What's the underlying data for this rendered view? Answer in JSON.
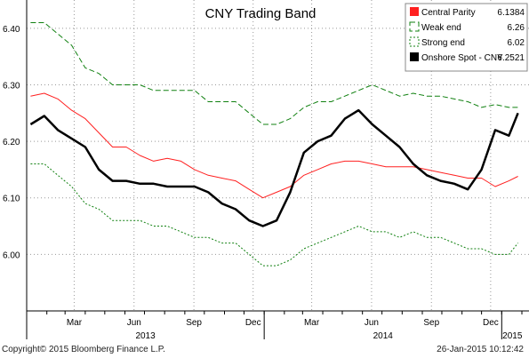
{
  "chart_data": {
    "type": "line",
    "title": "CNY Trading Band",
    "xlabel": "",
    "ylabel": "",
    "ylim": [
      5.9,
      6.45
    ],
    "yticks": [
      "6.40",
      "6.30",
      "6.20",
      "6.10",
      "6.00"
    ],
    "x_tick_labels": [
      "Mar",
      "Jun",
      "Sep",
      "Dec",
      "Mar",
      "Jun",
      "Sep",
      "Dec"
    ],
    "year_labels": [
      "2013",
      "2014",
      "2015"
    ],
    "grid": true,
    "legend_position": "top-right",
    "x": [
      "2013-01-07",
      "2013-01-28",
      "2013-02-18",
      "2013-03-11",
      "2013-04-01",
      "2013-04-22",
      "2013-05-13",
      "2013-06-03",
      "2013-06-24",
      "2013-07-15",
      "2013-08-05",
      "2013-08-26",
      "2013-09-16",
      "2013-10-07",
      "2013-10-28",
      "2013-11-18",
      "2013-12-09",
      "2013-12-30",
      "2014-01-20",
      "2014-02-10",
      "2014-03-03",
      "2014-03-24",
      "2014-04-14",
      "2014-05-05",
      "2014-05-26",
      "2014-06-16",
      "2014-07-07",
      "2014-07-28",
      "2014-08-18",
      "2014-09-08",
      "2014-09-29",
      "2014-10-20",
      "2014-11-10",
      "2014-12-01",
      "2014-12-22",
      "2015-01-12",
      "2015-01-26"
    ],
    "series": [
      {
        "name": "Central Parity",
        "last_value": "6.1384",
        "color": "#ff2020",
        "dash": "solid",
        "values": [
          6.28,
          6.285,
          6.275,
          6.255,
          6.24,
          6.215,
          6.19,
          6.19,
          6.175,
          6.165,
          6.17,
          6.165,
          6.15,
          6.14,
          6.135,
          6.13,
          6.115,
          6.1,
          6.11,
          6.12,
          6.14,
          6.15,
          6.16,
          6.165,
          6.165,
          6.16,
          6.155,
          6.155,
          6.155,
          6.15,
          6.145,
          6.14,
          6.135,
          6.135,
          6.12,
          6.13,
          6.138
        ]
      },
      {
        "name": "Weak end",
        "last_value": "6.26",
        "color": "#108010",
        "dash": "6,3",
        "values": [
          6.41,
          6.41,
          6.39,
          6.37,
          6.33,
          6.32,
          6.3,
          6.3,
          6.3,
          6.29,
          6.29,
          6.29,
          6.29,
          6.27,
          6.27,
          6.27,
          6.25,
          6.23,
          6.23,
          6.24,
          6.26,
          6.27,
          6.27,
          6.28,
          6.29,
          6.3,
          6.29,
          6.28,
          6.285,
          6.28,
          6.28,
          6.275,
          6.27,
          6.26,
          6.265,
          6.26,
          6.26
        ]
      },
      {
        "name": "Strong end",
        "last_value": "6.02",
        "color": "#108010",
        "dash": "2,2",
        "values": [
          6.16,
          6.16,
          6.14,
          6.12,
          6.09,
          6.08,
          6.06,
          6.06,
          6.06,
          6.05,
          6.05,
          6.04,
          6.03,
          6.03,
          6.02,
          6.02,
          6.0,
          5.98,
          5.98,
          5.99,
          6.01,
          6.02,
          6.03,
          6.04,
          6.05,
          6.04,
          6.04,
          6.03,
          6.04,
          6.03,
          6.03,
          6.02,
          6.01,
          6.01,
          6.0,
          6.0,
          6.02
        ]
      },
      {
        "name": "Onshore Spot - CNY",
        "last_value": "6.2521",
        "color": "#000000",
        "dash": "solid",
        "values": [
          6.23,
          6.245,
          6.22,
          6.205,
          6.19,
          6.15,
          6.13,
          6.13,
          6.125,
          6.125,
          6.12,
          6.12,
          6.12,
          6.11,
          6.09,
          6.08,
          6.06,
          6.05,
          6.06,
          6.11,
          6.18,
          6.2,
          6.21,
          6.24,
          6.255,
          6.23,
          6.21,
          6.19,
          6.16,
          6.14,
          6.13,
          6.125,
          6.115,
          6.15,
          6.22,
          6.21,
          6.25
        ]
      }
    ]
  },
  "footer": {
    "copyright": "Copyright© 2015 Bloomberg Finance L.P.",
    "timestamp": "26-Jan-2015 10:12:42"
  }
}
